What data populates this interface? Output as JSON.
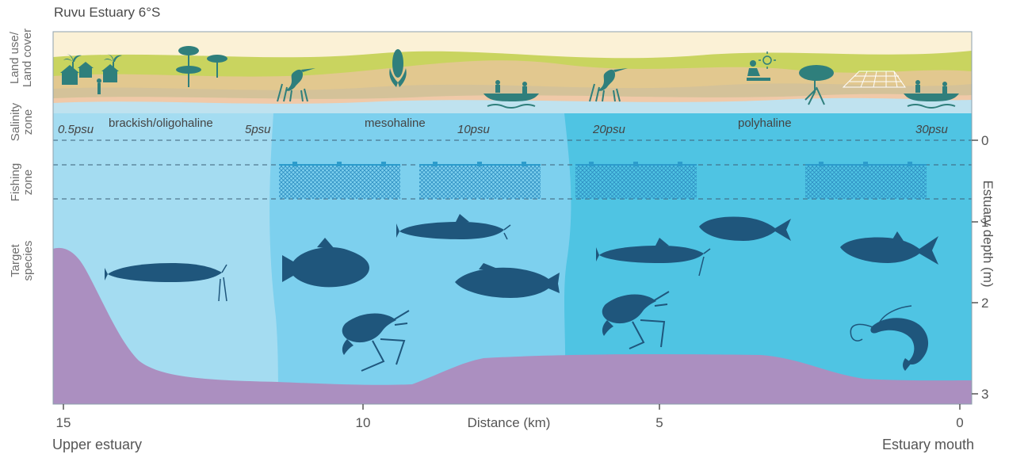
{
  "title": "Ruvu Estuary 6°S",
  "row_labels": {
    "land": [
      "Land use/",
      "Land cover"
    ],
    "salinity": [
      "Salinity",
      "zone"
    ],
    "fishing": [
      "Fishing",
      "zone"
    ],
    "species": [
      "Target",
      "species"
    ]
  },
  "salinity": {
    "psu_labels": [
      "0.5psu",
      "5psu",
      "10psu",
      "20psu",
      "30psu"
    ],
    "zones": [
      "brackish/oligohaline",
      "mesohaline",
      "polyhaline"
    ]
  },
  "x_axis": {
    "label": "Distance (km)",
    "ticks": [
      "15",
      "10",
      "5",
      "0"
    ],
    "left_end": "Upper estuary",
    "right_end": "Estuary mouth"
  },
  "y_axis": {
    "label": "Estuary depth (m)",
    "ticks": [
      "0",
      "1",
      "2",
      "3"
    ]
  },
  "colors": {
    "water_upper": "#a4dcf1",
    "water_mid": "#7dd0ee",
    "water_lower": "#4fc4e3",
    "riverbed": "#ab8fc0",
    "net": "#2c9ccc",
    "species": "#1f567c",
    "land_green": "#c9d45f",
    "land_sand": "#e8c38c"
  },
  "icons": [
    "village-icon",
    "acacia-tree-icon",
    "heron-icon",
    "maize-icon",
    "canoe-fishers-icon",
    "farmer-icon",
    "mangrove-icon",
    "salt-pans-icon",
    "catfish-icon",
    "grouper-icon",
    "shrimp-icon",
    "milkfish-icon",
    "mullet-icon"
  ]
}
